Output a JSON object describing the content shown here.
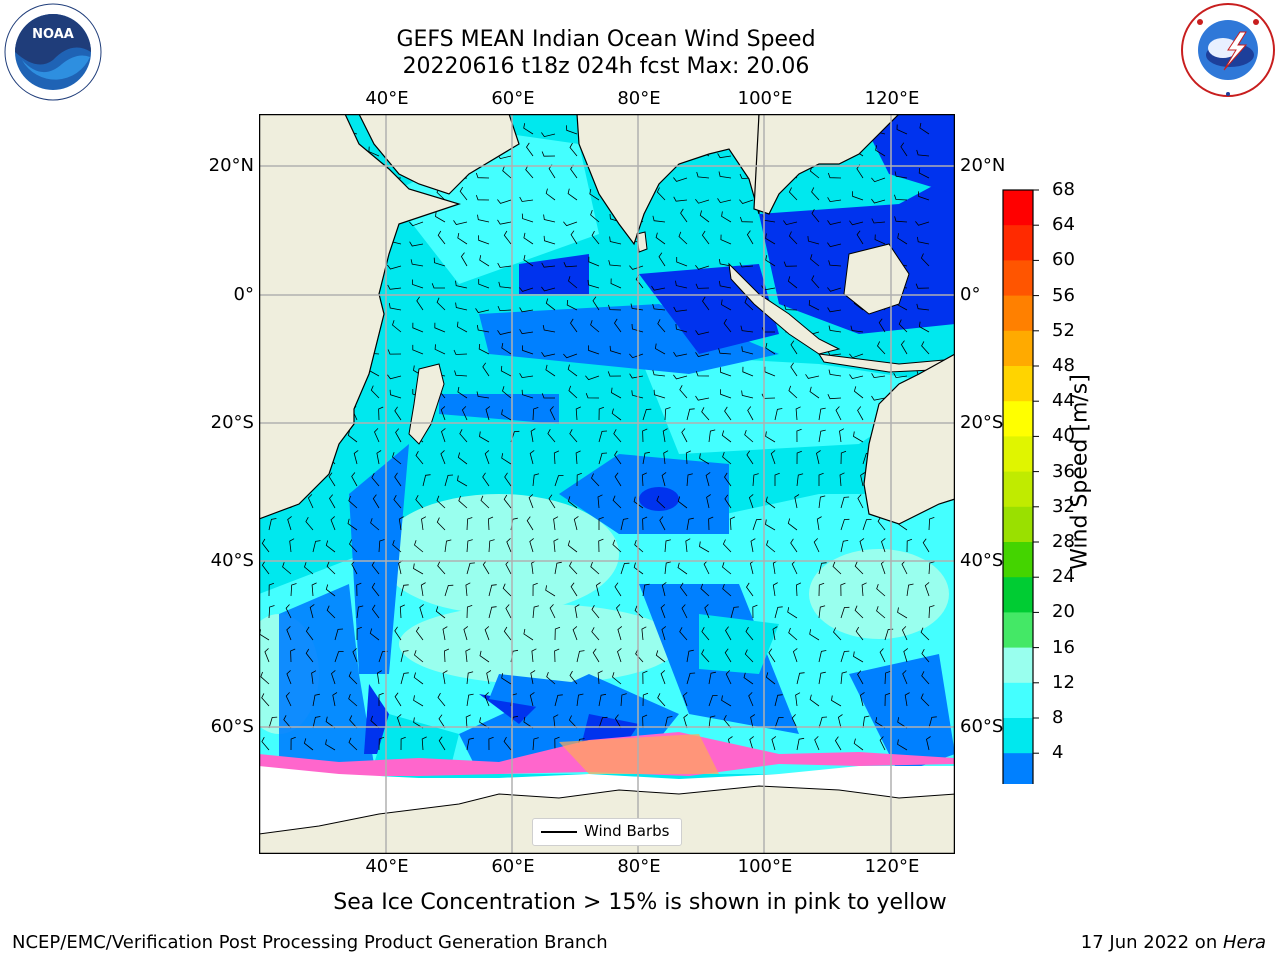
{
  "title": {
    "line1": "GEFS MEAN Indian Ocean Wind Speed",
    "line2": "20220616 t18z 024h fcst   Max: 20.06"
  },
  "map": {
    "lon_ticks": [
      "40°E",
      "60°E",
      "80°E",
      "100°E",
      "120°E"
    ],
    "lat_ticks_left": [
      "20°N",
      "0°",
      "20°S",
      "40°S",
      "60°S"
    ],
    "lat_ticks_right": [
      "20°N",
      "0°",
      "20°S",
      "40°S",
      "60°S"
    ],
    "colors": {
      "land": "#efeedd",
      "ice_land": "#ffffff",
      "grid": "#b0b0b0"
    }
  },
  "colorbar": {
    "label": "Wind Speed [m/s]",
    "ticks": [
      "68",
      "64",
      "60",
      "56",
      "52",
      "48",
      "44",
      "40",
      "36",
      "32",
      "28",
      "24",
      "20",
      "16",
      "12",
      "8",
      "4"
    ],
    "colors": [
      "#ff0000",
      "#ff2a00",
      "#ff5500",
      "#ff8000",
      "#ffaa00",
      "#ffd400",
      "#ffff00",
      "#e0f500",
      "#c0eb00",
      "#9ae000",
      "#44d400",
      "#00cc33",
      "#44e866",
      "#99ffee",
      "#44ffff",
      "#00e8ee",
      "#0080ff",
      "#0033ee"
    ]
  },
  "legend": {
    "label": "Wind Barbs"
  },
  "caption": "Sea Ice Concentration > 15% is shown in pink to yellow",
  "footer": {
    "left": "NCEP/EMC/Verification Post Processing Product Generation Branch",
    "date": "17 Jun 2022 on ",
    "machine": "Hera"
  },
  "logos": {
    "left": "NOAA",
    "right": "NATIONAL WEATHER SERVICE"
  }
}
